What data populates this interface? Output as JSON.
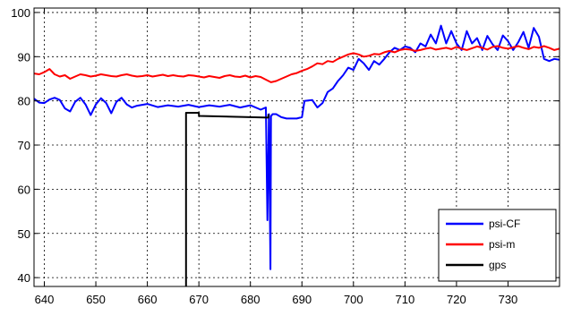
{
  "chart_data": {
    "type": "line",
    "xlim": [
      638,
      740
    ],
    "ylim": [
      38,
      101
    ],
    "xticks": [
      640,
      650,
      660,
      670,
      680,
      690,
      700,
      710,
      720,
      730
    ],
    "yticks": [
      40,
      50,
      60,
      70,
      80,
      90,
      100
    ],
    "grid": "dashed",
    "legend_position": "bottom-right",
    "series": [
      {
        "name": "psi-CF",
        "color": "#0000ff",
        "x": [
          638,
          639,
          640,
          641,
          642,
          643,
          644,
          645,
          646,
          647,
          648,
          649,
          650,
          651,
          652,
          653,
          654,
          655,
          656,
          657,
          658,
          660,
          662,
          664,
          666,
          668,
          670,
          672,
          674,
          676,
          678,
          680,
          682,
          683,
          683.3,
          683.6,
          683.9,
          684,
          684.3,
          685,
          686,
          687,
          688,
          689,
          690,
          690.5,
          692,
          693,
          694,
          695,
          696,
          697,
          698,
          699,
          700,
          701,
          702,
          703,
          704,
          705,
          706,
          707,
          708,
          709,
          710,
          711,
          712,
          713,
          714,
          715,
          716,
          717,
          718,
          719,
          720,
          721,
          722,
          723,
          724,
          725,
          726,
          727,
          728,
          729,
          730,
          731,
          732,
          733,
          734,
          735,
          736,
          737,
          738,
          739,
          740
        ],
        "values": [
          80.5,
          79.6,
          79.5,
          80.3,
          80.7,
          80.2,
          78.3,
          77.6,
          79.8,
          80.7,
          79.2,
          76.8,
          79.2,
          80.6,
          79.5,
          77.2,
          79.8,
          80.7,
          79.2,
          78.5,
          78.9,
          79.3,
          78.6,
          79.0,
          78.7,
          79.1,
          78.6,
          79.0,
          78.7,
          79.1,
          78.5,
          79.0,
          78.0,
          78.5,
          53.0,
          77.0,
          41.9,
          76.5,
          77.0,
          77.0,
          76.3,
          76.0,
          76.0,
          76.0,
          76.3,
          80.0,
          80.2,
          78.5,
          79.5,
          82.0,
          82.8,
          84.5,
          85.8,
          87.5,
          87.0,
          89.5,
          88.5,
          87.0,
          89.0,
          88.2,
          89.5,
          91.0,
          92.0,
          91.5,
          92.3,
          92.0,
          91.0,
          93.0,
          92.3,
          95.0,
          93.0,
          97.0,
          93.0,
          95.8,
          93.0,
          91.5,
          95.8,
          93.0,
          94.2,
          91.5,
          94.7,
          92.8,
          91.5,
          94.8,
          93.5,
          91.5,
          93.3,
          95.6,
          92.0,
          96.5,
          94.5,
          89.5,
          89.0,
          89.5,
          89.3
        ]
      },
      {
        "name": "psi-m",
        "color": "#ff0000",
        "x": [
          638,
          639,
          640,
          641,
          642,
          643,
          644,
          645,
          646,
          647,
          648,
          649,
          650,
          651,
          652,
          653,
          654,
          655,
          656,
          657,
          658,
          659,
          660,
          661,
          662,
          663,
          664,
          665,
          666,
          667,
          668,
          669,
          670,
          671,
          672,
          673,
          674,
          675,
          676,
          677,
          678,
          679,
          680,
          681,
          682,
          683,
          684,
          685,
          686,
          687,
          688,
          689,
          690,
          691,
          692,
          693,
          694,
          695,
          696,
          697,
          698,
          699,
          700,
          701,
          702,
          703,
          704,
          705,
          706,
          707,
          708,
          709,
          710,
          711,
          712,
          713,
          714,
          715,
          716,
          717,
          718,
          719,
          720,
          721,
          722,
          723,
          724,
          725,
          726,
          727,
          728,
          729,
          730,
          731,
          732,
          733,
          734,
          735,
          736,
          737,
          738,
          739,
          740
        ],
        "values": [
          86.2,
          86.0,
          86.5,
          87.2,
          86.0,
          85.5,
          85.8,
          85.0,
          85.5,
          86.0,
          85.8,
          85.5,
          85.7,
          86.0,
          85.8,
          85.6,
          85.5,
          85.8,
          86.0,
          85.7,
          85.5,
          85.6,
          85.8,
          85.5,
          85.7,
          85.9,
          85.6,
          85.8,
          85.6,
          85.5,
          85.8,
          85.7,
          85.5,
          85.3,
          85.6,
          85.4,
          85.2,
          85.6,
          85.8,
          85.5,
          85.4,
          85.7,
          85.3,
          85.6,
          85.4,
          84.8,
          84.2,
          84.5,
          85.0,
          85.5,
          86.0,
          86.3,
          86.8,
          87.2,
          87.8,
          88.5,
          88.3,
          89.0,
          88.8,
          89.5,
          90.0,
          90.5,
          90.8,
          90.5,
          90.0,
          90.2,
          90.6,
          90.5,
          91.0,
          91.3,
          91.0,
          91.5,
          91.7,
          91.6,
          91.3,
          91.5,
          91.8,
          92.0,
          91.6,
          91.8,
          92.0,
          91.7,
          92.2,
          91.8,
          91.5,
          91.9,
          92.3,
          92.0,
          91.6,
          92.2,
          92.4,
          92.0,
          91.8,
          92.1,
          92.4,
          92.0,
          91.7,
          92.2,
          92.0,
          92.4,
          92.0,
          91.5,
          91.8
        ]
      },
      {
        "name": "gps",
        "color": "#000000",
        "x": [
          667.5,
          667.5,
          670,
          670,
          683.5,
          683.5
        ],
        "values": [
          38,
          77.3,
          77.3,
          76.6,
          76.2,
          77.0
        ]
      }
    ]
  }
}
